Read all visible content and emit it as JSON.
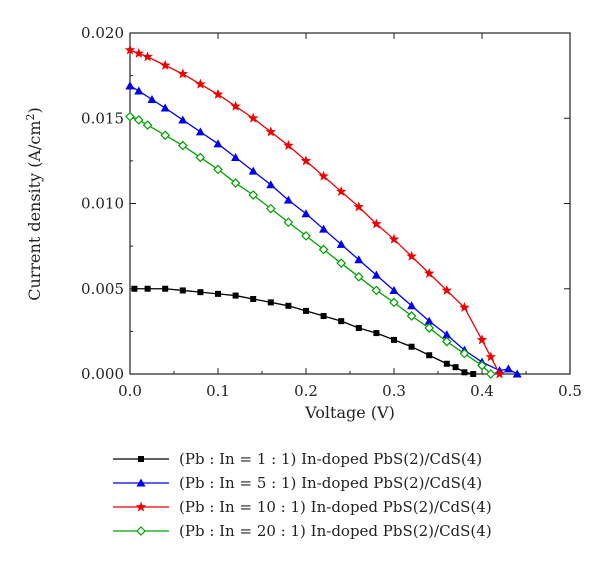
{
  "chart_data": {
    "type": "line",
    "xlabel": "Voltage (V)",
    "ylabel": "Current density (A/cm",
    "ylabel_sup": "2",
    "ylabel_suffix": ")",
    "xlim": [
      0,
      0.5
    ],
    "ylim": [
      0,
      0.02
    ],
    "x_ticks": [
      "0.0",
      "0.1",
      "0.2",
      "0.3",
      "0.4",
      "0.5"
    ],
    "y_ticks": [
      "0.000",
      "0.005",
      "0.010",
      "0.015",
      "0.020"
    ],
    "grid": false,
    "legend_position": "below",
    "series": [
      {
        "name": "(Pb : In = 1 : 1) In-doped PbS(2)/CdS(4)",
        "color": "#000000",
        "marker": "square",
        "x": [
          0.005,
          0.02,
          0.04,
          0.06,
          0.08,
          0.1,
          0.12,
          0.14,
          0.16,
          0.18,
          0.2,
          0.22,
          0.24,
          0.26,
          0.28,
          0.3,
          0.32,
          0.34,
          0.36,
          0.37,
          0.38,
          0.39
        ],
        "y": [
          0.005,
          0.005,
          0.005,
          0.0049,
          0.0048,
          0.0047,
          0.0046,
          0.0044,
          0.0042,
          0.004,
          0.0037,
          0.0034,
          0.0031,
          0.0027,
          0.0024,
          0.002,
          0.0016,
          0.0011,
          0.0006,
          0.0004,
          0.0001,
          0.0
        ]
      },
      {
        "name": "(Pb : In = 5 : 1) In-doped PbS(2)/CdS(4)",
        "color": "#0000ee",
        "marker": "triangle",
        "x": [
          0.0,
          0.0,
          0.01,
          0.025,
          0.04,
          0.06,
          0.08,
          0.1,
          0.12,
          0.14,
          0.16,
          0.18,
          0.2,
          0.22,
          0.24,
          0.26,
          0.28,
          0.3,
          0.32,
          0.34,
          0.36,
          0.38,
          0.4,
          0.42,
          0.43,
          0.44
        ],
        "y": [
          0.0169,
          0.0169,
          0.0166,
          0.0161,
          0.0156,
          0.0149,
          0.0142,
          0.0135,
          0.0127,
          0.0119,
          0.0111,
          0.0102,
          0.0094,
          0.0085,
          0.0076,
          0.0067,
          0.0058,
          0.0049,
          0.004,
          0.0031,
          0.0023,
          0.0014,
          0.0007,
          0.0002,
          0.0003,
          0.0
        ]
      },
      {
        "name": "(Pb : In = 10 : 1) In-doped PbS(2)/CdS(4)",
        "color": "#ee0000",
        "marker": "star",
        "x": [
          0.0,
          0.01,
          0.02,
          0.04,
          0.06,
          0.08,
          0.1,
          0.12,
          0.14,
          0.16,
          0.18,
          0.2,
          0.22,
          0.24,
          0.26,
          0.28,
          0.3,
          0.32,
          0.34,
          0.36,
          0.38,
          0.4,
          0.41,
          0.42
        ],
        "y": [
          0.019,
          0.0188,
          0.0186,
          0.0181,
          0.0176,
          0.017,
          0.0164,
          0.0157,
          0.015,
          0.0142,
          0.0134,
          0.0125,
          0.0116,
          0.0107,
          0.0098,
          0.0088,
          0.0079,
          0.0069,
          0.0059,
          0.0049,
          0.0039,
          0.002,
          0.001,
          0.0
        ]
      },
      {
        "name": "(Pb : In = 20 : 1) In-doped PbS(2)/CdS(4)",
        "color": "#00a000",
        "marker": "diamond-open",
        "x": [
          0.0,
          0.01,
          0.02,
          0.04,
          0.06,
          0.08,
          0.1,
          0.12,
          0.14,
          0.16,
          0.18,
          0.2,
          0.22,
          0.24,
          0.26,
          0.28,
          0.3,
          0.32,
          0.34,
          0.36,
          0.38,
          0.4,
          0.41
        ],
        "y": [
          0.0151,
          0.0149,
          0.0146,
          0.014,
          0.0134,
          0.0127,
          0.012,
          0.0112,
          0.0105,
          0.0097,
          0.0089,
          0.0081,
          0.0073,
          0.0065,
          0.0057,
          0.0049,
          0.0042,
          0.0034,
          0.0027,
          0.0019,
          0.0012,
          0.0005,
          0.0
        ]
      }
    ]
  }
}
